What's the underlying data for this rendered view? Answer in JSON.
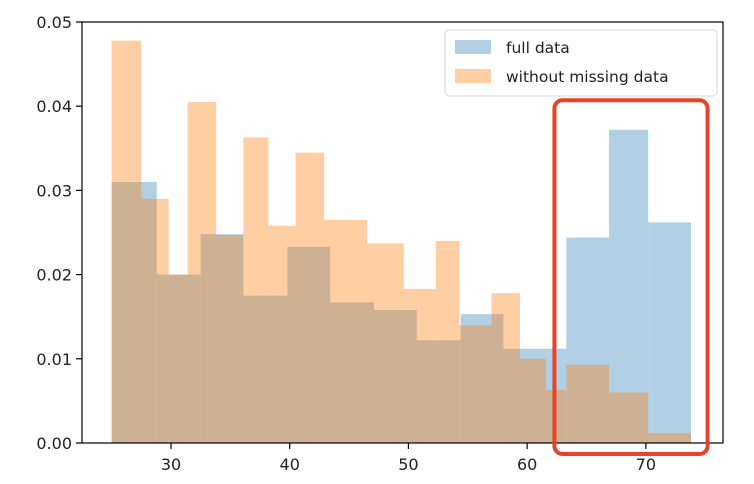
{
  "chart_data": {
    "type": "bar",
    "subtype": "overlapping-histogram",
    "title": "",
    "xlabel": "",
    "ylabel": "",
    "xlim": [
      22.5,
      76.5
    ],
    "ylim": [
      0,
      0.05
    ],
    "x_ticks": [
      30,
      40,
      50,
      60,
      70
    ],
    "y_ticks": [
      "0.00",
      "0.01",
      "0.02",
      "0.03",
      "0.04",
      "0.05"
    ],
    "grid": false,
    "legend_position": "upper right",
    "series": [
      {
        "name": "full data",
        "color": "#1f77b4",
        "alpha": 0.35,
        "bins": [
          {
            "x0": 25.0,
            "x1": 28.8,
            "value": 0.031
          },
          {
            "x0": 28.8,
            "x1": 32.5,
            "value": 0.02
          },
          {
            "x0": 32.5,
            "x1": 36.1,
            "value": 0.0248
          },
          {
            "x0": 36.1,
            "x1": 39.8,
            "value": 0.0175
          },
          {
            "x0": 39.8,
            "x1": 43.4,
            "value": 0.0233
          },
          {
            "x0": 43.4,
            "x1": 47.1,
            "value": 0.0167
          },
          {
            "x0": 47.1,
            "x1": 50.7,
            "value": 0.0158
          },
          {
            "x0": 50.7,
            "x1": 54.4,
            "value": 0.0122
          },
          {
            "x0": 54.4,
            "x1": 58.0,
            "value": 0.0153
          },
          {
            "x0": 58.0,
            "x1": 61.6,
            "value": 0.0112
          },
          {
            "x0": 61.6,
            "x1": 63.3,
            "value": 0.0112
          },
          {
            "x0": 63.3,
            "x1": 66.9,
            "value": 0.0244
          },
          {
            "x0": 66.9,
            "x1": 70.2,
            "value": 0.0372
          },
          {
            "x0": 70.2,
            "x1": 73.8,
            "value": 0.0262
          }
        ]
      },
      {
        "name": "without missing data",
        "color": "#ff7f0e",
        "alpha": 0.38,
        "bins": [
          {
            "x0": 25.0,
            "x1": 27.5,
            "value": 0.0478
          },
          {
            "x0": 27.5,
            "x1": 29.8,
            "value": 0.029
          },
          {
            "x0": 29.8,
            "x1": 31.4,
            "value": 0.02
          },
          {
            "x0": 31.4,
            "x1": 33.8,
            "value": 0.0405
          },
          {
            "x0": 33.8,
            "x1": 36.1,
            "value": 0.0247
          },
          {
            "x0": 36.1,
            "x1": 38.2,
            "value": 0.0363
          },
          {
            "x0": 38.2,
            "x1": 40.5,
            "value": 0.0258
          },
          {
            "x0": 40.5,
            "x1": 42.9,
            "value": 0.0345
          },
          {
            "x0": 42.9,
            "x1": 46.5,
            "value": 0.0265
          },
          {
            "x0": 46.5,
            "x1": 49.6,
            "value": 0.0237
          },
          {
            "x0": 49.6,
            "x1": 52.3,
            "value": 0.0183
          },
          {
            "x0": 52.3,
            "x1": 54.3,
            "value": 0.024
          },
          {
            "x0": 54.3,
            "x1": 57.0,
            "value": 0.014
          },
          {
            "x0": 57.0,
            "x1": 59.4,
            "value": 0.0178
          },
          {
            "x0": 59.4,
            "x1": 61.6,
            "value": 0.01
          },
          {
            "x0": 61.6,
            "x1": 63.3,
            "value": 0.0063
          },
          {
            "x0": 63.3,
            "x1": 66.9,
            "value": 0.0093
          },
          {
            "x0": 66.9,
            "x1": 70.2,
            "value": 0.006
          },
          {
            "x0": 70.2,
            "x1": 73.8,
            "value": 0.0012
          }
        ]
      }
    ],
    "annotation": {
      "shape": "rounded-rectangle",
      "color": "#e8432a",
      "x_range": [
        62.3,
        75.2
      ],
      "y_range": [
        -0.0013,
        0.0407
      ]
    }
  }
}
